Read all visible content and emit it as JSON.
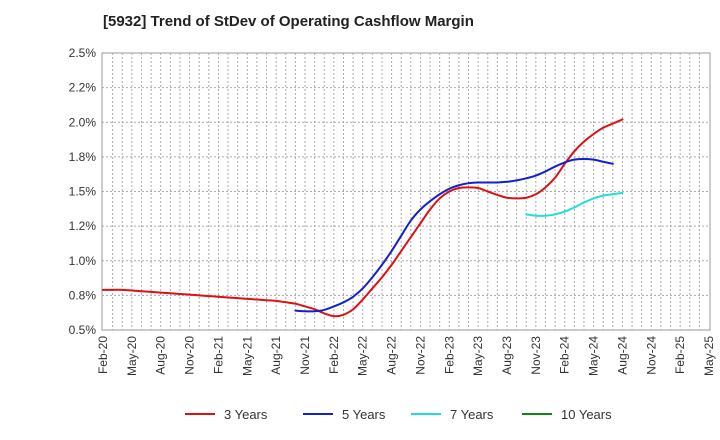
{
  "chart_data": {
    "type": "line",
    "title": "[5932]  Trend of StDev of Operating Cashflow Margin",
    "xlabel": "",
    "ylabel": "",
    "ylim": [
      0.5,
      2.5
    ],
    "y_ticks": [
      "0.5%",
      "0.8%",
      "1.0%",
      "1.2%",
      "1.5%",
      "1.8%",
      "2.0%",
      "2.2%",
      "2.5%"
    ],
    "y_tick_values": [
      0.5,
      0.75,
      1.0,
      1.25,
      1.5,
      1.75,
      2.0,
      2.25,
      2.5
    ],
    "x_ticks": [
      "Feb-20",
      "May-20",
      "Aug-20",
      "Nov-20",
      "Feb-21",
      "May-21",
      "Aug-21",
      "Nov-21",
      "Feb-22",
      "May-22",
      "Aug-22",
      "Nov-22",
      "Feb-23",
      "May-23",
      "Aug-23",
      "Nov-23",
      "Feb-24",
      "May-24",
      "Aug-24",
      "Nov-24",
      "Feb-25",
      "May-25"
    ],
    "x_count": 64,
    "grid": true,
    "legend_position": "bottom",
    "series": [
      {
        "name": "3 Years",
        "color": "#dd1111",
        "start_index": 0,
        "values": [
          0.79,
          0.79,
          0.79,
          0.785,
          0.78,
          0.775,
          0.77,
          0.765,
          0.76,
          0.755,
          0.75,
          0.745,
          0.74,
          0.735,
          0.73,
          0.725,
          0.72,
          0.715,
          0.71,
          0.7,
          0.69,
          0.67,
          0.65,
          0.62,
          0.6,
          0.61,
          0.65,
          0.72,
          0.8,
          0.88,
          0.97,
          1.07,
          1.17,
          1.27,
          1.37,
          1.45,
          1.5,
          1.525,
          1.53,
          1.525,
          1.5,
          1.475,
          1.455,
          1.45,
          1.455,
          1.48,
          1.53,
          1.6,
          1.7,
          1.79,
          1.86,
          1.915,
          1.96,
          1.99,
          2.02
        ]
      },
      {
        "name": "5 Years",
        "color": "#1122cc",
        "start_index": 20,
        "values": [
          0.64,
          0.635,
          0.635,
          0.645,
          0.67,
          0.7,
          0.74,
          0.8,
          0.88,
          0.97,
          1.07,
          1.18,
          1.29,
          1.37,
          1.43,
          1.48,
          1.52,
          1.545,
          1.56,
          1.565,
          1.565,
          1.565,
          1.57,
          1.58,
          1.595,
          1.615,
          1.645,
          1.68,
          1.71,
          1.73,
          1.735,
          1.73,
          1.715,
          1.7
        ]
      },
      {
        "name": "7 Years",
        "color": "#22dddd",
        "start_index": 44,
        "values": [
          1.335,
          1.325,
          1.325,
          1.335,
          1.355,
          1.385,
          1.42,
          1.45,
          1.47,
          1.48,
          1.49
        ]
      },
      {
        "name": "10 Years",
        "color": "#118811",
        "start_index": 0,
        "values": []
      }
    ]
  }
}
